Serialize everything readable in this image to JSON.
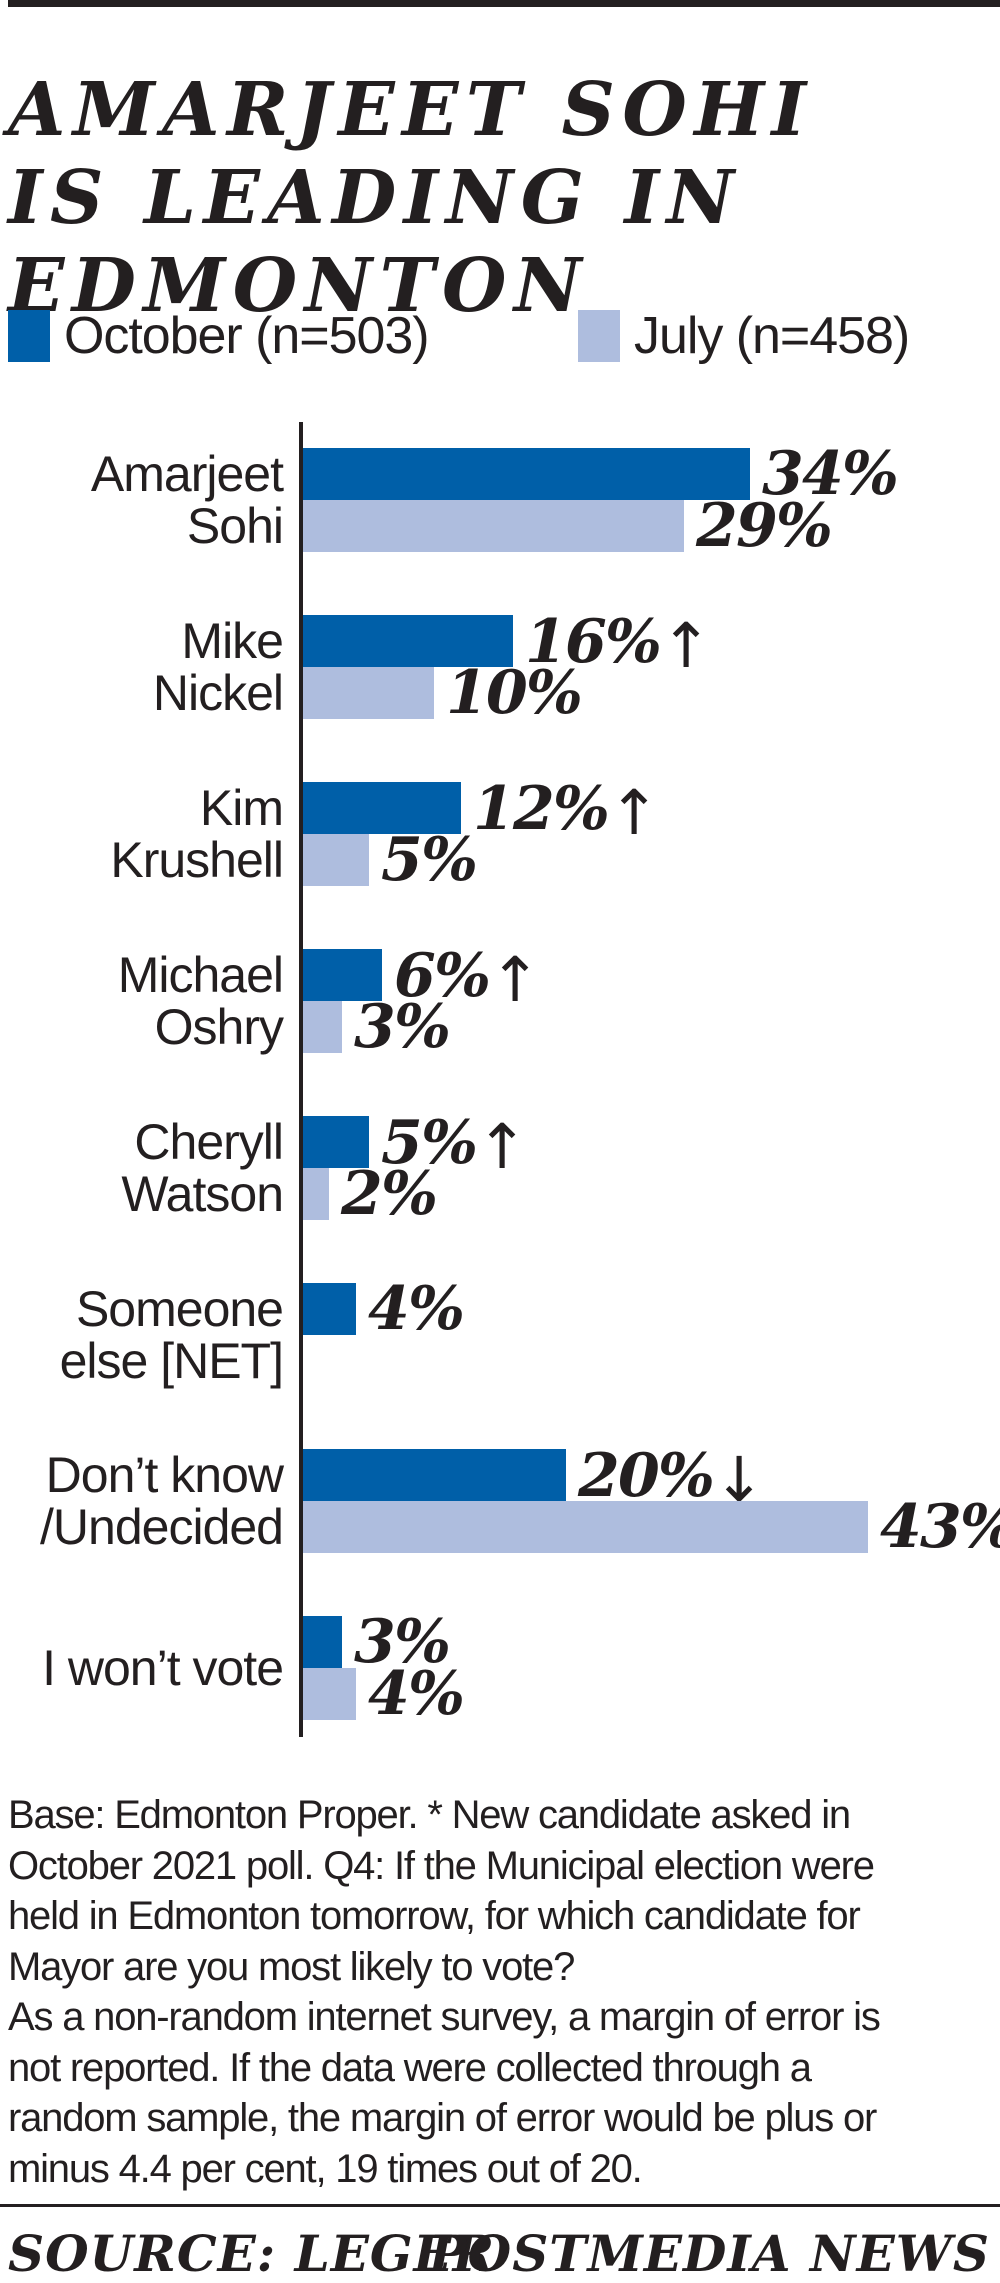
{
  "title": "AMARJEET SOHI\nIS LEADING IN\nEDMONTON",
  "colors": {
    "october": "#005fa8",
    "july": "#aebdde",
    "ink": "#231f20"
  },
  "legend": {
    "october_label": "October (n=503)",
    "july_label": "July (n=458)"
  },
  "chart_data": {
    "type": "bar",
    "orientation": "horizontal",
    "value_unit": "%",
    "xlim": [
      0,
      45
    ],
    "grid": false,
    "value_labels_shown": true,
    "legend_position": "top",
    "series": [
      {
        "name": "October (n=503)",
        "color_key": "october"
      },
      {
        "name": "July (n=458)",
        "color_key": "july"
      }
    ],
    "rows": [
      {
        "category": "Amarjeet Sohi",
        "label_lines": [
          "Amarjeet",
          "Sohi"
        ],
        "october": 34,
        "july": 29,
        "trend": ""
      },
      {
        "category": "Mike Nickel",
        "label_lines": [
          "Mike",
          "Nickel"
        ],
        "october": 16,
        "july": 10,
        "trend": "↑"
      },
      {
        "category": "Kim Krushell",
        "label_lines": [
          "Kim",
          "Krushell"
        ],
        "october": 12,
        "july": 5,
        "trend": "↑"
      },
      {
        "category": "Michael Oshry",
        "label_lines": [
          "Michael",
          "Oshry"
        ],
        "october": 6,
        "july": 3,
        "trend": "↑"
      },
      {
        "category": "Cheryll Watson",
        "label_lines": [
          "Cheryll",
          "Watson"
        ],
        "october": 5,
        "july": 2,
        "trend": "↑"
      },
      {
        "category": "Someone else [NET]",
        "label_lines": [
          "Someone",
          "else [NET]"
        ],
        "october": 4,
        "july": null,
        "trend": ""
      },
      {
        "category": "Don’t know /Undecided",
        "label_lines": [
          "Don’t know",
          "/Undecided"
        ],
        "october": 20,
        "july": 43,
        "trend": "↓"
      },
      {
        "category": "I won’t vote",
        "label_lines": [
          "I won’t vote"
        ],
        "october": 3,
        "july": 4,
        "trend": ""
      }
    ]
  },
  "footnote": "Base: Edmonton Proper. * New candidate asked in\nOctober 2021 poll. Q4: If the Municipal election were\nheld in Edmonton tomorrow, for which candidate for\nMayor are you most likely to vote?\nAs a non-random internet survey, a margin of error is\nnot reported. If the data were collected through a\nrandom sample, the margin of error would be plus or\nminus 4.4 per cent, 19 times out of 20.",
  "source": {
    "left": "SOURCE: LEGER",
    "right": "POSTMEDIA NEWS"
  }
}
